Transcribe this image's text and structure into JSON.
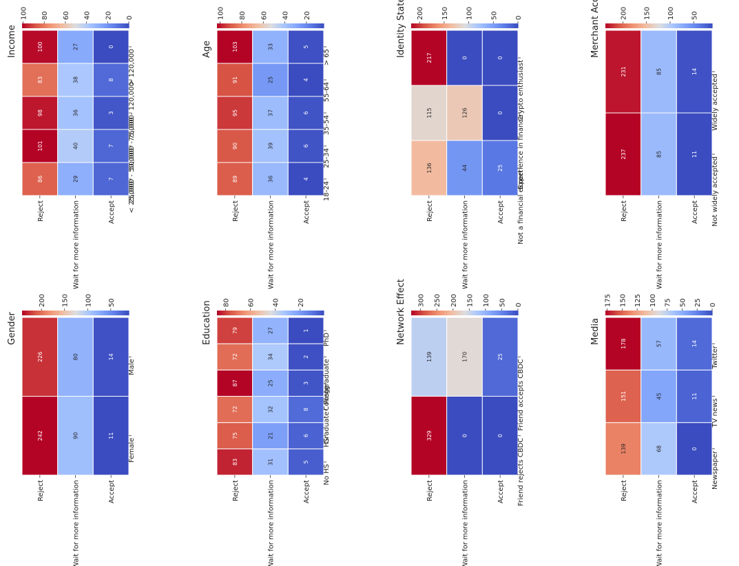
{
  "chart_data": [
    {
      "type": "heatmap",
      "title": "Gender",
      "rows": [
        "Reject",
        "Wait for more information",
        "Accept"
      ],
      "columns": [
        "Female",
        "Male"
      ],
      "values": [
        [
          242,
          226
        ],
        [
          90,
          80
        ],
        [
          11,
          14
        ]
      ],
      "vmin": 11,
      "vmax": 242,
      "colorbar_ticks": [
        50,
        100,
        150,
        200
      ]
    },
    {
      "type": "heatmap",
      "title": "Income",
      "rows": [
        "Reject",
        "Wait for more information",
        "Accept"
      ],
      "columns": [
        "< 25,000",
        "25,000 - 50,000",
        "50,000 - 75,000",
        "75,000 - 120,000",
        "> 120,000"
      ],
      "values": [
        [
          86,
          101,
          98,
          83,
          100
        ],
        [
          29,
          40,
          36,
          38,
          27
        ],
        [
          7,
          7,
          3,
          8,
          0
        ]
      ],
      "vmin": 0,
      "vmax": 101,
      "colorbar_ticks": [
        0,
        20,
        40,
        60,
        80,
        100
      ]
    },
    {
      "type": "heatmap",
      "title": "Education",
      "rows": [
        "Reject",
        "Wait for more information",
        "Accept"
      ],
      "columns": [
        "No HS",
        "HS",
        "Graduate",
        "College",
        "Postgraduate",
        "PhD"
      ],
      "values": [
        [
          83,
          75,
          72,
          87,
          72,
          79
        ],
        [
          31,
          21,
          32,
          25,
          34,
          27
        ],
        [
          5,
          6,
          8,
          3,
          2,
          1
        ]
      ],
      "vmin": 1,
      "vmax": 87,
      "colorbar_ticks": [
        20,
        40,
        60,
        80
      ]
    },
    {
      "type": "heatmap",
      "title": "Age",
      "rows": [
        "Reject",
        "Wait for more information",
        "Accept"
      ],
      "columns": [
        "18-24",
        "25-34",
        "35-54",
        "55-64",
        "> 65"
      ],
      "values": [
        [
          89,
          90,
          95,
          91,
          103
        ],
        [
          36,
          39,
          37,
          25,
          33
        ],
        [
          4,
          6,
          6,
          4,
          5
        ]
      ],
      "vmin": 4,
      "vmax": 103,
      "colorbar_ticks": [
        20,
        40,
        60,
        80,
        100
      ]
    },
    {
      "type": "heatmap",
      "title": "Network Effect",
      "rows": [
        "Reject",
        "Wait for more information",
        "Accept"
      ],
      "columns": [
        "Friend rejects CBDC",
        "Friend accepts CBDC"
      ],
      "values": [
        [
          329,
          139
        ],
        [
          0,
          170
        ],
        [
          0,
          25
        ]
      ],
      "vmin": 0,
      "vmax": 329,
      "colorbar_ticks": [
        0,
        50,
        100,
        150,
        200,
        250,
        300
      ]
    },
    {
      "type": "heatmap",
      "title": "Identity Statement",
      "rows": [
        "Reject",
        "Wait for more information",
        "Accept"
      ],
      "columns": [
        "Not a financial expert",
        "Experience in finance",
        "Crypto enthusiast"
      ],
      "values": [
        [
          136,
          115,
          217
        ],
        [
          44,
          126,
          0
        ],
        [
          25,
          0,
          0
        ]
      ],
      "vmin": 0,
      "vmax": 217,
      "colorbar_ticks": [
        0,
        50,
        100,
        150,
        200
      ]
    },
    {
      "type": "heatmap",
      "title": "Media",
      "rows": [
        "Reject",
        "Wait for more information",
        "Accept"
      ],
      "columns": [
        "Newspaper",
        "TV news",
        "Twitter"
      ],
      "values": [
        [
          139,
          151,
          178
        ],
        [
          68,
          45,
          57
        ],
        [
          0,
          11,
          14
        ]
      ],
      "vmin": 0,
      "vmax": 178,
      "colorbar_ticks": [
        0,
        25,
        50,
        75,
        100,
        125,
        150,
        175
      ]
    },
    {
      "type": "heatmap",
      "title": "Merchant Acceptance",
      "rows": [
        "Reject",
        "Wait for more information",
        "Accept"
      ],
      "columns": [
        "Not widely accepted",
        "Widely accepted"
      ],
      "values": [
        [
          237,
          231
        ],
        [
          85,
          85
        ],
        [
          11,
          14
        ]
      ],
      "vmin": 11,
      "vmax": 237,
      "colorbar_ticks": [
        50,
        100,
        150,
        200
      ]
    }
  ]
}
